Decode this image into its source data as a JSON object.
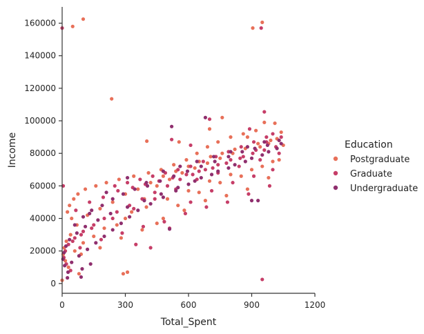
{
  "chart_data": {
    "type": "scatter",
    "xlabel": "Total_Spent",
    "ylabel": "Income",
    "xlim": [
      0,
      1200
    ],
    "ylim": [
      -6000,
      170000
    ],
    "xticks": [
      0,
      300,
      600,
      900,
      1200
    ],
    "yticks": [
      0,
      20000,
      40000,
      60000,
      80000,
      100000,
      120000,
      140000,
      160000
    ],
    "legend": {
      "title": "Education",
      "placement": "right"
    },
    "series": [
      {
        "name": "Postgraduate",
        "color": "#e87059",
        "points": [
          [
            100,
            162500
          ],
          [
            950,
            160500
          ],
          [
            905,
            157000
          ],
          [
            50,
            158000
          ],
          [
            235,
            113500
          ],
          [
            960,
            99000
          ],
          [
            1010,
            98500
          ],
          [
            700,
            95000
          ],
          [
            760,
            102000
          ],
          [
            555,
            87000
          ],
          [
            402,
            87500
          ],
          [
            1040,
            93000
          ],
          [
            1020,
            89000
          ],
          [
            980,
            86000
          ],
          [
            940,
            84000
          ],
          [
            880,
            90000
          ],
          [
            820,
            82500
          ],
          [
            760,
            80000
          ],
          [
            705,
            78000
          ],
          [
            650,
            75000
          ],
          [
            600,
            72000
          ],
          [
            540,
            69000
          ],
          [
            480,
            66000
          ],
          [
            420,
            62000
          ],
          [
            360,
            58000
          ],
          [
            300,
            55000
          ],
          [
            240,
            50000
          ],
          [
            180,
            46000
          ],
          [
            120,
            42000
          ],
          [
            70,
            36000
          ],
          [
            40,
            30000
          ],
          [
            20,
            26000
          ],
          [
            10,
            22000
          ],
          [
            5,
            18000
          ],
          [
            15,
            14000
          ],
          [
            30,
            10000
          ],
          [
            80,
            6000
          ],
          [
            0,
            2000
          ],
          [
            260,
            36000
          ],
          [
            330,
            44000
          ],
          [
            390,
            52000
          ],
          [
            450,
            60000
          ],
          [
            510,
            64000
          ],
          [
            570,
            68000
          ],
          [
            630,
            71000
          ],
          [
            690,
            74000
          ],
          [
            750,
            77000
          ],
          [
            810,
            80000
          ],
          [
            870,
            83000
          ],
          [
            930,
            86000
          ],
          [
            990,
            88000
          ],
          [
            1050,
            85000
          ],
          [
            1000,
            75000
          ],
          [
            900,
            70000
          ],
          [
            800,
            67000
          ],
          [
            700,
            63000
          ],
          [
            600,
            57000
          ],
          [
            500,
            52000
          ],
          [
            400,
            47000
          ],
          [
            300,
            40000
          ],
          [
            200,
            34000
          ],
          [
            150,
            29000
          ],
          [
            100,
            25000
          ],
          [
            60,
            20000
          ],
          [
            290,
            6000
          ],
          [
            310,
            7000
          ],
          [
            450,
            37000
          ],
          [
            550,
            48000
          ],
          [
            650,
            56000
          ],
          [
            750,
            62000
          ],
          [
            850,
            66000
          ],
          [
            950,
            72000
          ],
          [
            1030,
            76000
          ],
          [
            980,
            65000
          ],
          [
            880,
            58000
          ],
          [
            780,
            54000
          ],
          [
            680,
            51000
          ],
          [
            580,
            45000
          ],
          [
            480,
            40000
          ],
          [
            380,
            33000
          ],
          [
            280,
            28000
          ],
          [
            180,
            22000
          ],
          [
            90,
            18000
          ],
          [
            45,
            40000
          ],
          [
            25,
            44000
          ],
          [
            35,
            48000
          ],
          [
            55,
            52000
          ],
          [
            75,
            55000
          ],
          [
            110,
            58000
          ],
          [
            160,
            60000
          ],
          [
            210,
            62000
          ],
          [
            270,
            64000
          ],
          [
            340,
            66000
          ],
          [
            410,
            68000
          ],
          [
            470,
            70000
          ],
          [
            530,
            73000
          ],
          [
            590,
            76000
          ],
          [
            640,
            80000
          ],
          [
            690,
            84000
          ],
          [
            740,
            87000
          ],
          [
            800,
            90000
          ],
          [
            860,
            92000
          ],
          [
            920,
            94000
          ]
        ]
      },
      {
        "name": "Graduate",
        "color": "#c63e68",
        "points": [
          [
            0,
            157000
          ],
          [
            945,
            157000
          ],
          [
            950,
            2500
          ],
          [
            5,
            60000
          ],
          [
            960,
            105500
          ],
          [
            520,
            88500
          ],
          [
            610,
            85000
          ],
          [
            700,
            101000
          ],
          [
            890,
            95000
          ],
          [
            1000,
            92000
          ],
          [
            1040,
            90000
          ],
          [
            970,
            87000
          ],
          [
            920,
            82000
          ],
          [
            860,
            78000
          ],
          [
            800,
            76000
          ],
          [
            740,
            73000
          ],
          [
            680,
            70000
          ],
          [
            620,
            67000
          ],
          [
            560,
            64000
          ],
          [
            500,
            60000
          ],
          [
            440,
            56000
          ],
          [
            380,
            52000
          ],
          [
            320,
            48000
          ],
          [
            260,
            44000
          ],
          [
            200,
            40000
          ],
          [
            150,
            36000
          ],
          [
            100,
            32000
          ],
          [
            60,
            28000
          ],
          [
            30,
            24000
          ],
          [
            15,
            20000
          ],
          [
            8,
            16000
          ],
          [
            20,
            12000
          ],
          [
            40,
            8000
          ],
          [
            250,
            60000
          ],
          [
            310,
            62000
          ],
          [
            370,
            64000
          ],
          [
            430,
            66000
          ],
          [
            490,
            68000
          ],
          [
            550,
            70000
          ],
          [
            610,
            72000
          ],
          [
            670,
            75000
          ],
          [
            730,
            78000
          ],
          [
            790,
            81000
          ],
          [
            850,
            84000
          ],
          [
            910,
            87000
          ],
          [
            970,
            90000
          ],
          [
            1030,
            80000
          ],
          [
            940,
            76000
          ],
          [
            840,
            72000
          ],
          [
            740,
            68000
          ],
          [
            640,
            64000
          ],
          [
            540,
            58000
          ],
          [
            440,
            52000
          ],
          [
            340,
            46000
          ],
          [
            240,
            40000
          ],
          [
            140,
            34000
          ],
          [
            90,
            30000
          ],
          [
            50,
            26000
          ],
          [
            350,
            24000
          ],
          [
            420,
            22000
          ],
          [
            510,
            34000
          ],
          [
            610,
            50000
          ],
          [
            710,
            57000
          ],
          [
            810,
            62000
          ],
          [
            910,
            66000
          ],
          [
            1000,
            70000
          ],
          [
            65,
            45000
          ],
          [
            130,
            50000
          ],
          [
            195,
            53000
          ],
          [
            265,
            57000
          ],
          [
            335,
            59000
          ],
          [
            395,
            61000
          ],
          [
            460,
            63000
          ],
          [
            525,
            65000
          ],
          [
            590,
            67000
          ],
          [
            650,
            69000
          ],
          [
            715,
            71000
          ],
          [
            780,
            74000
          ],
          [
            845,
            77000
          ],
          [
            905,
            80000
          ],
          [
            960,
            82000
          ],
          [
            1015,
            84000
          ],
          [
            985,
            60000
          ],
          [
            885,
            55000
          ],
          [
            785,
            50000
          ],
          [
            685,
            47000
          ],
          [
            585,
            43000
          ],
          [
            485,
            38000
          ],
          [
            385,
            35000
          ],
          [
            285,
            31000
          ],
          [
            185,
            27000
          ],
          [
            85,
            22000
          ]
        ]
      },
      {
        "name": "Undergraduate",
        "color": "#8f2f6e",
        "points": [
          [
            520,
            96500
          ],
          [
            680,
            102000
          ],
          [
            900,
            51000
          ],
          [
            930,
            51000
          ],
          [
            510,
            33500
          ],
          [
            310,
            65000
          ],
          [
            400,
            62000
          ],
          [
            480,
            69000
          ],
          [
            560,
            72000
          ],
          [
            640,
            75000
          ],
          [
            720,
            78000
          ],
          [
            800,
            81000
          ],
          [
            880,
            84000
          ],
          [
            960,
            87000
          ],
          [
            1020,
            83000
          ],
          [
            950,
            79000
          ],
          [
            870,
            75000
          ],
          [
            790,
            71000
          ],
          [
            710,
            67000
          ],
          [
            630,
            63000
          ],
          [
            550,
            59000
          ],
          [
            470,
            55000
          ],
          [
            390,
            51000
          ],
          [
            310,
            47000
          ],
          [
            230,
            43000
          ],
          [
            170,
            39000
          ],
          [
            110,
            35000
          ],
          [
            70,
            31000
          ],
          [
            35,
            27000
          ],
          [
            18,
            23000
          ],
          [
            9,
            19000
          ],
          [
            4,
            15000
          ],
          [
            12,
            11000
          ],
          [
            28,
            7000
          ],
          [
            45,
            13000
          ],
          [
            80,
            17000
          ],
          [
            120,
            21000
          ],
          [
            160,
            25000
          ],
          [
            200,
            29000
          ],
          [
            240,
            33000
          ],
          [
            280,
            37000
          ],
          [
            320,
            41000
          ],
          [
            360,
            45000
          ],
          [
            420,
            49000
          ],
          [
            480,
            53000
          ],
          [
            540,
            57000
          ],
          [
            600,
            61000
          ],
          [
            660,
            65000
          ],
          [
            740,
            69000
          ],
          [
            820,
            73000
          ],
          [
            900,
            77000
          ],
          [
            980,
            81000
          ],
          [
            1040,
            86000
          ],
          [
            95,
            9000
          ],
          [
            135,
            12000
          ],
          [
            60,
            36000
          ],
          [
            100,
            41000
          ],
          [
            140,
            45000
          ],
          [
            190,
            48000
          ],
          [
            240,
            52000
          ],
          [
            290,
            55000
          ],
          [
            345,
            58000
          ],
          [
            405,
            60000
          ],
          [
            465,
            63000
          ],
          [
            530,
            66000
          ],
          [
            595,
            69000
          ],
          [
            660,
            72000
          ],
          [
            725,
            75000
          ],
          [
            790,
            78000
          ],
          [
            855,
            81000
          ],
          [
            915,
            83000
          ],
          [
            975,
            85000
          ],
          [
            1030,
            88000
          ],
          [
            90,
            4000
          ],
          [
            25,
            3500
          ],
          [
            130,
            43000
          ],
          [
            210,
            56000
          ]
        ]
      }
    ]
  }
}
